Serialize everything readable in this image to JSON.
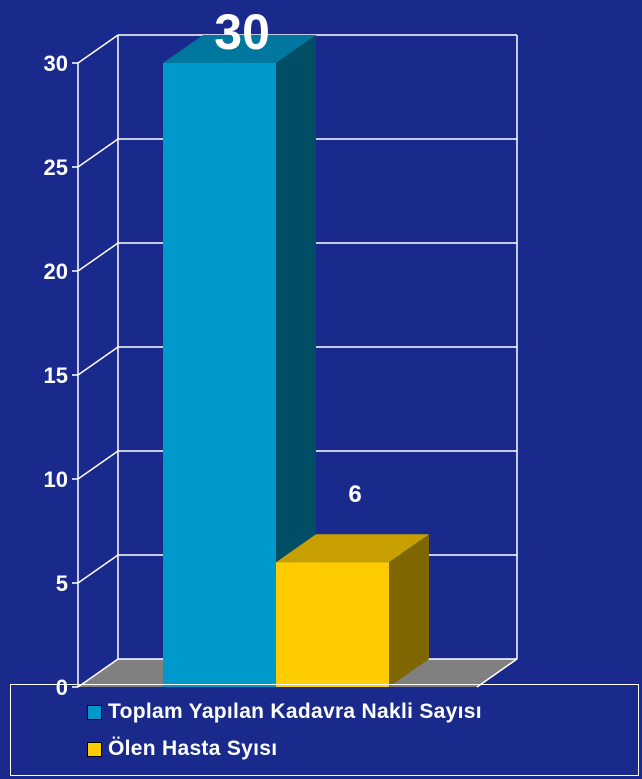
{
  "chart_data": {
    "type": "bar",
    "title": "",
    "xlabel": "",
    "ylabel": "",
    "ylim": [
      0,
      30
    ],
    "yticks": [
      0,
      5,
      10,
      15,
      20,
      25,
      30
    ],
    "grid": true,
    "style_3d": true,
    "legend_placement": "bottom",
    "series": [
      {
        "name": "Toplam Yapılan Kadavra Nakli Sayısı",
        "values": [
          30
        ],
        "data_label": "30",
        "color": "#0099cc"
      },
      {
        "name": "Ölen Hasta Syısı",
        "values": [
          6
        ],
        "data_label": "6",
        "color": "#ffcc00"
      }
    ]
  },
  "colors": {
    "background": "#1a2a8c",
    "grid": "#ffffff",
    "floor": "#808080",
    "axis_text": "#ffffff"
  }
}
